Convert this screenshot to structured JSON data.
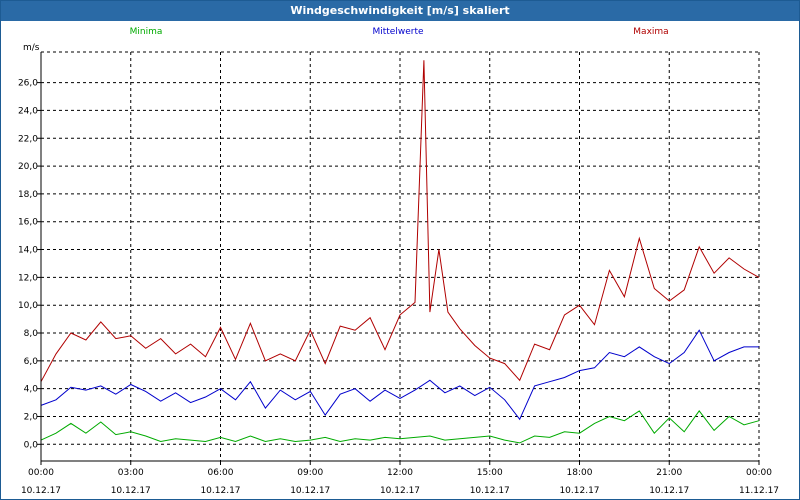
{
  "window": {
    "title": "Windgeschwindigkeit [m/s] skaliert"
  },
  "chart_data": {
    "type": "line",
    "title": "Windgeschwindigkeit [m/s] skaliert",
    "ylabel": "m/s",
    "xlabel": "",
    "ylim": [
      -1.2,
      28.2
    ],
    "yticks": [
      0,
      2,
      4,
      6,
      8,
      10,
      12,
      14,
      16,
      18,
      20,
      22,
      24,
      26
    ],
    "ytick_labels": [
      "0,0",
      "2,0",
      "4,0",
      "6,0",
      "8,0",
      "10,0",
      "12,0",
      "14,0",
      "16,0",
      "18,0",
      "20,0",
      "22,0",
      "24,0",
      "26,0"
    ],
    "xlim_hours": [
      0,
      24
    ],
    "xticks_hours": [
      0,
      3,
      6,
      9,
      12,
      15,
      18,
      21,
      24
    ],
    "xtick_time_labels": [
      "00:00",
      "03:00",
      "06:00",
      "09:00",
      "12:00",
      "15:00",
      "18:00",
      "21:00",
      "00:00"
    ],
    "xtick_date_labels": [
      "10.12.17",
      "10.12.17",
      "10.12.17",
      "10.12.17",
      "10.12.17",
      "10.12.17",
      "10.12.17",
      "10.12.17",
      "11.12.17"
    ],
    "grid": true,
    "series": [
      {
        "name": "Minima",
        "color": "#00aa00",
        "x": [
          0,
          0.5,
          1,
          1.5,
          2,
          2.5,
          3,
          3.5,
          4,
          4.5,
          5,
          5.5,
          6,
          6.5,
          7,
          7.5,
          8,
          8.5,
          9,
          9.5,
          10,
          10.5,
          11,
          11.5,
          12,
          12.5,
          13,
          13.5,
          14,
          14.5,
          15,
          15.5,
          16,
          16.5,
          17,
          17.5,
          18,
          18.5,
          19,
          19.5,
          20,
          20.5,
          21,
          21.5,
          22,
          22.5,
          23,
          23.5,
          24
        ],
        "values": [
          0.3,
          0.8,
          1.5,
          0.8,
          1.6,
          0.7,
          0.9,
          0.6,
          0.2,
          0.4,
          0.3,
          0.2,
          0.5,
          0.2,
          0.6,
          0.2,
          0.4,
          0.2,
          0.3,
          0.5,
          0.2,
          0.4,
          0.3,
          0.5,
          0.4,
          0.5,
          0.6,
          0.3,
          0.4,
          0.5,
          0.6,
          0.3,
          0.1,
          0.6,
          0.5,
          0.9,
          0.8,
          1.5,
          2.0,
          1.7,
          2.4,
          0.8,
          1.9,
          0.9,
          2.4,
          1.0,
          2.0,
          1.4,
          1.7
        ]
      },
      {
        "name": "Mittelwerte",
        "color": "#0000cc",
        "x": [
          0,
          0.5,
          1,
          1.5,
          2,
          2.5,
          3,
          3.5,
          4,
          4.5,
          5,
          5.5,
          6,
          6.5,
          7,
          7.5,
          8,
          8.5,
          9,
          9.5,
          10,
          10.5,
          11,
          11.5,
          12,
          12.5,
          13,
          13.5,
          14,
          14.5,
          15,
          15.5,
          16,
          16.5,
          17,
          17.5,
          18,
          18.5,
          19,
          19.5,
          20,
          20.5,
          21,
          21.5,
          22,
          22.5,
          23,
          23.5,
          24
        ],
        "values": [
          2.8,
          3.2,
          4.1,
          3.9,
          4.2,
          3.6,
          4.3,
          3.8,
          3.1,
          3.7,
          3.0,
          3.4,
          4.0,
          3.2,
          4.5,
          2.6,
          3.9,
          3.2,
          3.8,
          2.1,
          3.6,
          4.0,
          3.1,
          3.9,
          3.3,
          3.9,
          4.6,
          3.7,
          4.2,
          3.5,
          4.1,
          3.2,
          1.8,
          4.2,
          4.5,
          4.8,
          5.3,
          5.5,
          6.6,
          6.3,
          7.0,
          6.3,
          5.8,
          6.6,
          8.2,
          6.0,
          6.6,
          7.0,
          7.0
        ]
      },
      {
        "name": "Maxima",
        "color": "#b00000",
        "x": [
          0,
          0.5,
          1,
          1.5,
          2,
          2.5,
          3,
          3.5,
          4,
          4.5,
          5,
          5.5,
          6,
          6.5,
          7,
          7.5,
          8,
          8.5,
          9,
          9.5,
          10,
          10.5,
          11,
          11.5,
          12,
          12.5,
          12.8,
          13,
          13.3,
          13.6,
          14,
          14.5,
          15,
          15.5,
          16,
          16.5,
          17,
          17.5,
          18,
          18.5,
          19,
          19.5,
          20,
          20.5,
          21,
          21.5,
          22,
          22.5,
          23,
          23.5,
          24
        ],
        "values": [
          4.5,
          6.5,
          8.0,
          7.5,
          8.8,
          7.6,
          7.8,
          6.9,
          7.6,
          6.5,
          7.2,
          6.3,
          8.4,
          6.1,
          8.7,
          6.0,
          6.5,
          6.0,
          8.2,
          5.8,
          8.5,
          8.2,
          9.1,
          6.8,
          9.3,
          10.2,
          27.6,
          9.5,
          14.0,
          9.5,
          8.3,
          7.1,
          6.2,
          5.8,
          4.6,
          7.2,
          6.8,
          9.3,
          10.0,
          8.6,
          12.5,
          10.6,
          14.8,
          11.2,
          10.3,
          11.1,
          14.2,
          12.3,
          13.4,
          12.6,
          12.0
        ]
      }
    ]
  }
}
